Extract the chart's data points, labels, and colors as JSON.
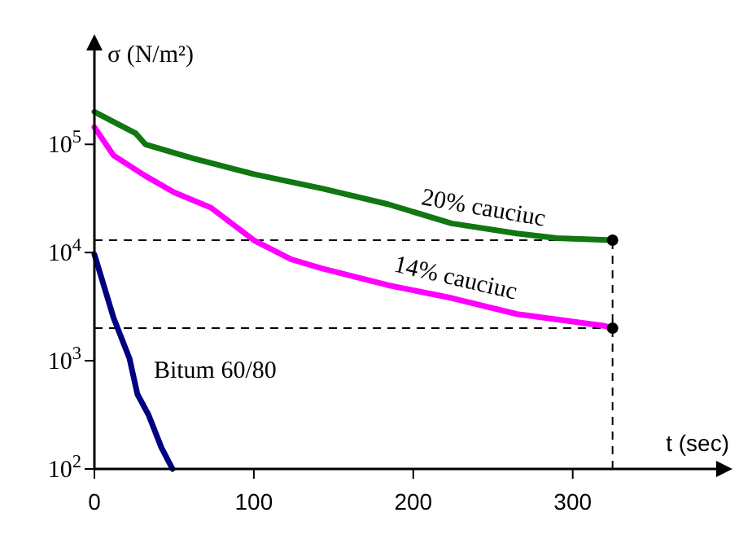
{
  "chart_data": {
    "type": "line",
    "xlabel": "t (sec)",
    "ylabel": "σ (N/m²)",
    "log": "y",
    "xlim": [
      0,
      390
    ],
    "ylim": [
      100,
      750000
    ],
    "xticks": [
      0,
      100,
      200,
      300
    ],
    "yticks": [
      {
        "value": 100,
        "label": "10$^{2}$"
      },
      {
        "value": 1000,
        "label": "10$^{3}$"
      },
      {
        "value": 10000,
        "label": "10$^{4}$"
      },
      {
        "value": 100000,
        "label": "10$^{5}$"
      }
    ],
    "grid": false,
    "marker": "none",
    "line_style": "solid",
    "series": [
      {
        "name": "20% cauciuc",
        "color": "#117711",
        "x": [
          0,
          26,
          32,
          62,
          100,
          143,
          184,
          224,
          265,
          290,
          325
        ],
        "values": [
          200000,
          126000,
          100000,
          74000,
          53000,
          39000,
          28000,
          18600,
          15000,
          13600,
          13000
        ]
      },
      {
        "name": "14% cauciuc",
        "color": "#ff00ff",
        "x": [
          0,
          12,
          32,
          50,
          73,
          100,
          123,
          143,
          184,
          224,
          265,
          320,
          325
        ],
        "values": [
          144000,
          79000,
          51000,
          36000,
          26000,
          13000,
          8700,
          7100,
          5000,
          3800,
          2700,
          2100,
          2000
        ]
      },
      {
        "name": "Bitum 60/80",
        "color": "#000080",
        "x": [
          0,
          12,
          22,
          27,
          34,
          42,
          49
        ],
        "values": [
          9600,
          2500,
          1050,
          490,
          315,
          158,
          100
        ]
      },
      {
        "type": "scatter",
        "marker": "circle",
        "color": "#000000",
        "x": [
          325,
          325
        ],
        "values": [
          13000,
          2000
        ]
      }
    ],
    "ref_lines": [
      {
        "axis": "y",
        "value": 13000,
        "color": "#000000",
        "line_style": "dashed"
      },
      {
        "axis": "y",
        "value": 2000,
        "color": "#000000",
        "line_style": "dashed"
      },
      {
        "axis": "x",
        "value": 325,
        "color": "#000000",
        "line_style": "dashed"
      }
    ]
  }
}
